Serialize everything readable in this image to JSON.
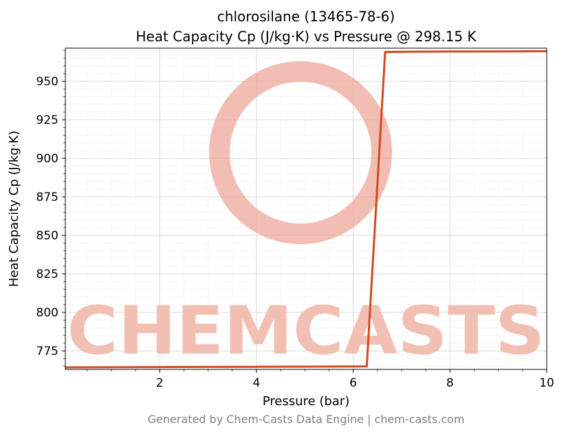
{
  "figure": {
    "title_lines": [
      "chlorosilane (13465-78-6)",
      "Heat Capacity Cp (J/kg·K) vs Pressure @ 298.15 K"
    ],
    "footer": "Generated by Chem-Casts Data Engine | chem-casts.com"
  },
  "chart_data": {
    "type": "line",
    "title": "chlorosilane (13465-78-6) — Heat Capacity Cp (J/kg·K) vs Pressure @ 298.15 K",
    "xlabel": "Pressure (bar)",
    "ylabel": "Heat Capacity Cp (J/kg·K)",
    "xlim": [
      0.05,
      10
    ],
    "ylim": [
      763,
      971.5
    ],
    "xticks": [
      2,
      4,
      6,
      8,
      10
    ],
    "yticks": [
      775,
      800,
      825,
      850,
      875,
      900,
      925,
      950
    ],
    "x_minor_step": 0.5,
    "y_minor_step": 5,
    "grid": "both",
    "legend": "none",
    "series": [
      {
        "name": "Heat Capacity Cp",
        "color": "#d2491c",
        "line_width": 3,
        "points": [
          [
            0.05,
            764.3
          ],
          [
            1,
            764.4
          ],
          [
            2,
            764.5
          ],
          [
            3,
            764.6
          ],
          [
            4,
            764.7
          ],
          [
            5,
            764.8
          ],
          [
            6,
            764.9
          ],
          [
            6.28,
            765.0
          ],
          [
            6.66,
            969.0
          ],
          [
            7,
            969.2
          ],
          [
            8,
            969.3
          ],
          [
            9,
            969.4
          ],
          [
            10,
            969.5
          ]
        ]
      }
    ],
    "annotations": {
      "watermark_text": "CHEMCASTS",
      "watermark_text_color": "#f2bcaf",
      "watermark_ring_color": "#eda89a"
    },
    "colors": {
      "spine": "#000000",
      "grid_major": "#d9d9d9",
      "grid_minor": "#e9e9e9",
      "tick_label": "#000000"
    }
  }
}
